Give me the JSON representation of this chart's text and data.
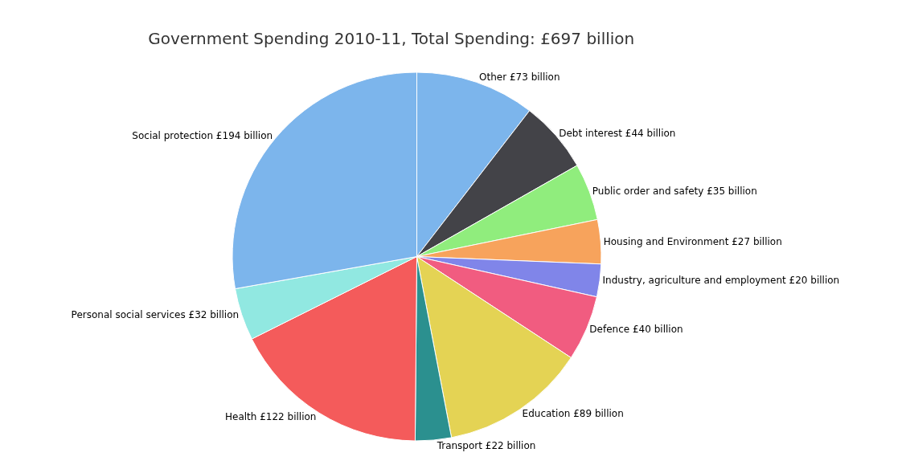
{
  "chart_data": {
    "type": "pie",
    "title": "Government Spending 2010-11, Total Spending: £697 billion",
    "categories": [
      "Other",
      "Debt interest",
      "Public order and safety",
      "Housing and Environment",
      "Industry, agriculture and employment",
      "Defence",
      "Education",
      "Transport",
      "Health",
      "Personal social services",
      "Social protection"
    ],
    "values": [
      73,
      44,
      35,
      27,
      20,
      40,
      89,
      22,
      122,
      32,
      194
    ],
    "value_labels": [
      "£73 billion",
      "£44 billion",
      "£35 billion",
      "£27 billion",
      "£20 billion",
      "£40 billion",
      "£89 billion",
      "£22 billion",
      "£122 billion",
      "£32 billion",
      "£194 billion"
    ],
    "colors": [
      "#7cb5ec",
      "#434348",
      "#90ed7d",
      "#f7a35c",
      "#8085e9",
      "#f15c80",
      "#e4d354",
      "#2b908f",
      "#f45b5b",
      "#91e8e1",
      "#7cb5ec"
    ],
    "legend": false
  }
}
